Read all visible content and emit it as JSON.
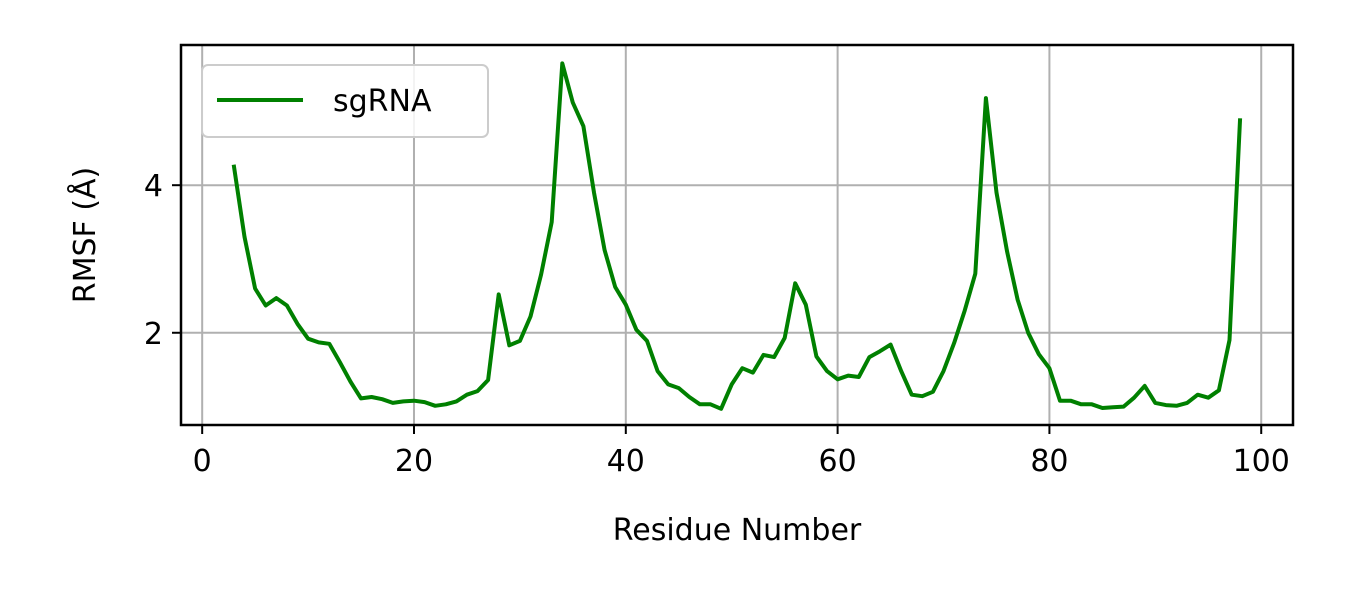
{
  "chart_data": {
    "type": "line",
    "title": "",
    "xlabel": "Residue Number",
    "ylabel": "RMSF (Å)",
    "xlim": [
      -2,
      103
    ],
    "ylim": [
      0.75,
      5.9
    ],
    "xticks": [
      0,
      20,
      40,
      60,
      80,
      100
    ],
    "yticks": [
      2,
      4
    ],
    "grid": true,
    "legend_position": "top-left",
    "series": [
      {
        "name": "sgRNA",
        "color": "#008000",
        "x": [
          3,
          4,
          5,
          6,
          7,
          8,
          9,
          10,
          11,
          12,
          13,
          14,
          15,
          16,
          17,
          18,
          19,
          20,
          21,
          22,
          23,
          24,
          25,
          26,
          27,
          28,
          29,
          30,
          31,
          32,
          33,
          34,
          35,
          36,
          37,
          38,
          39,
          40,
          41,
          42,
          43,
          44,
          45,
          46,
          47,
          48,
          49,
          50,
          51,
          52,
          53,
          54,
          55,
          56,
          57,
          58,
          59,
          60,
          61,
          62,
          63,
          64,
          65,
          66,
          67,
          68,
          69,
          70,
          71,
          72,
          73,
          74,
          75,
          76,
          77,
          78,
          79,
          80,
          81,
          82,
          83,
          84,
          85,
          86,
          87,
          88,
          89,
          90,
          91,
          92,
          93,
          94,
          95,
          96,
          97,
          98
        ],
        "y": [
          4.25,
          3.3,
          2.6,
          2.37,
          2.47,
          2.37,
          2.12,
          1.92,
          1.87,
          1.85,
          1.6,
          1.34,
          1.11,
          1.13,
          1.1,
          1.05,
          1.07,
          1.08,
          1.06,
          1.01,
          1.03,
          1.07,
          1.16,
          1.21,
          1.36,
          2.52,
          1.83,
          1.89,
          2.22,
          2.79,
          3.5,
          5.65,
          5.12,
          4.8,
          3.9,
          3.12,
          2.62,
          2.38,
          2.04,
          1.89,
          1.48,
          1.3,
          1.25,
          1.13,
          1.03,
          1.03,
          0.97,
          1.3,
          1.52,
          1.46,
          1.7,
          1.67,
          1.93,
          2.67,
          2.38,
          1.68,
          1.48,
          1.37,
          1.42,
          1.4,
          1.67,
          1.75,
          1.84,
          1.48,
          1.16,
          1.14,
          1.2,
          1.48,
          1.86,
          2.3,
          2.8,
          5.18,
          3.9,
          3.1,
          2.45,
          2.0,
          1.71,
          1.52,
          1.08,
          1.08,
          1.03,
          1.03,
          0.98,
          0.99,
          1.0,
          1.12,
          1.28,
          1.05,
          1.02,
          1.01,
          1.05,
          1.16,
          1.12,
          1.22,
          1.9,
          4.88
        ]
      }
    ]
  }
}
